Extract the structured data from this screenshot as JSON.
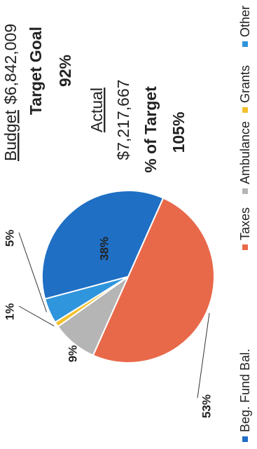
{
  "chart_data": {
    "type": "pie",
    "categories": [
      "Beg. Fund Bal.",
      "Taxes",
      "Ambulance",
      "Grants",
      "Other"
    ],
    "values": [
      38,
      53,
      9,
      1,
      5
    ],
    "value_labels": [
      "38%",
      "53%",
      "9%",
      "1%",
      "5%"
    ],
    "colors": [
      "#1f6fc4",
      "#e8694a",
      "#b5b5b5",
      "#f2c12e",
      "#2f95dc"
    ],
    "legend": "bottom"
  },
  "summary": {
    "budget_label": "Budget",
    "budget_value": "$6,842,009",
    "target_goal_label": "Target Goal",
    "target_goal_value": "92%",
    "actual_label": "Actual",
    "actual_value": "$7,217,667",
    "pct_target_label": "% of Target",
    "pct_target_value": "105%"
  }
}
